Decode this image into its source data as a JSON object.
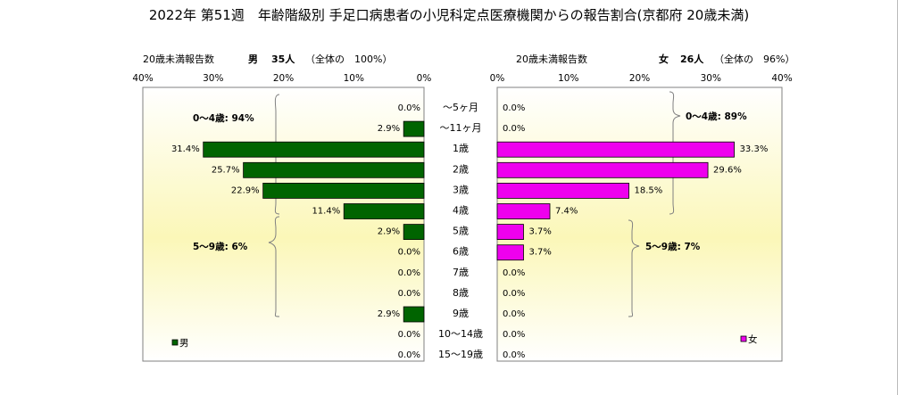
{
  "title": "2022年 第51週　年齢階級別 手足口病患者の小児科定点医療機関からの報告割合(京都府 20歳未満)",
  "chart_data": {
    "type": "bar",
    "orientation": "horizontal",
    "categories": [
      "～5ヶ月",
      "～11ヶ月",
      "1歳",
      "2歳",
      "3歳",
      "4歳",
      "5歳",
      "6歳",
      "7歳",
      "8歳",
      "9歳",
      "10～14歳",
      "15～19歳"
    ],
    "xlim": [
      0,
      40
    ],
    "xticks": [
      "0%",
      "10%",
      "20%",
      "30%",
      "40%"
    ],
    "grid": false,
    "series": [
      {
        "name": "男",
        "color": "#006400",
        "header_label": "20歳未満報告数",
        "header_sex": "男",
        "header_count": "35人",
        "header_share": "（全体の　100%）",
        "values": [
          0.0,
          2.9,
          31.4,
          25.7,
          22.9,
          11.4,
          2.9,
          0.0,
          0.0,
          0.0,
          2.9,
          0.0,
          0.0
        ],
        "value_labels": [
          "0.0%",
          "2.9%",
          "31.4%",
          "25.7%",
          "22.9%",
          "11.4%",
          "2.9%",
          "0.0%",
          "0.0%",
          "0.0%",
          "2.9%",
          "0.0%",
          "0.0%"
        ],
        "group_labels": [
          "0～4歳: 94%",
          "5～9歳: 6%"
        ],
        "legend": "男"
      },
      {
        "name": "女",
        "color": "#ee00ee",
        "header_label": "20歳未満報告数",
        "header_sex": "女",
        "header_count": "26人",
        "header_share": "（全体の　96%）",
        "values": [
          0.0,
          0.0,
          33.3,
          29.6,
          18.5,
          7.4,
          3.7,
          3.7,
          0.0,
          0.0,
          0.0,
          0.0,
          0.0
        ],
        "value_labels": [
          "0.0%",
          "0.0%",
          "33.3%",
          "29.6%",
          "18.5%",
          "7.4%",
          "3.7%",
          "3.7%",
          "0.0%",
          "0.0%",
          "0.0%",
          "0.0%",
          "0.0%"
        ],
        "group_labels": [
          "0～4歳: 89%",
          "5～9歳: 7%"
        ],
        "legend": "女"
      }
    ]
  }
}
